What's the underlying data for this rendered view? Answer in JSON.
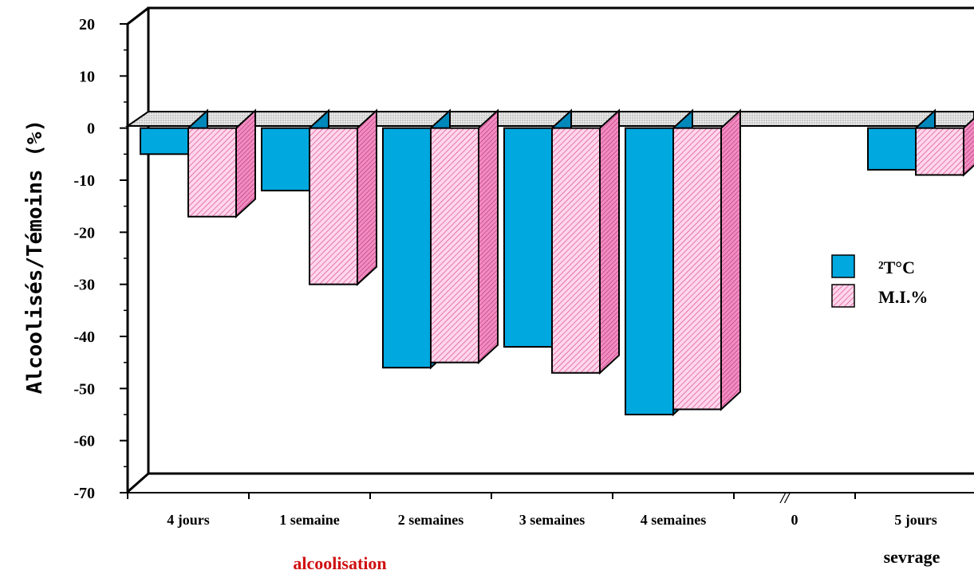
{
  "chart_data": {
    "type": "bar",
    "ylabel": "Alcoolisés/Témoins (%)",
    "ylim": [
      -70,
      20
    ],
    "yticks": [
      20,
      10,
      0,
      -10,
      -20,
      -30,
      -40,
      -50,
      -60,
      -70
    ],
    "categories": [
      "4 jours",
      "1 semaine",
      "2 semaines",
      "3 semaines",
      "4 semaines",
      "0",
      "5 jours"
    ],
    "break_marker": "//",
    "series": [
      {
        "name": "²T°C",
        "color": "#00a8e0",
        "values": [
          -5,
          -12,
          -46,
          -42,
          -55,
          null,
          -8
        ]
      },
      {
        "name": "M.I.%",
        "color": "#f7a6cf",
        "values": [
          -17,
          -30,
          -45,
          -47,
          -54,
          null,
          -9
        ]
      }
    ],
    "legend_position": "right",
    "groups": [
      {
        "label": "alcoolisation",
        "color": "#d01010"
      },
      {
        "label": "sevrage",
        "color": "#000000"
      }
    ],
    "grid": false
  }
}
